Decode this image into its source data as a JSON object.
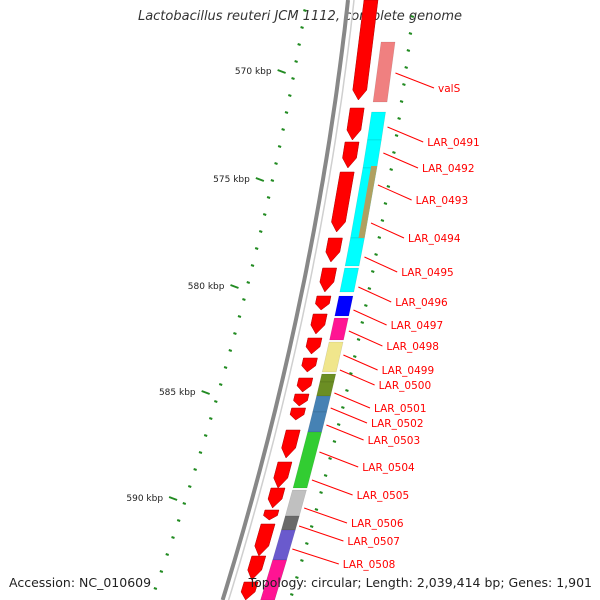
{
  "title": "Lactobacillus reuteri JCM 1112, complete genome",
  "accession": "Accession: NC_010609",
  "summary": "Topology: circular; Length: 2,039,414 bp; Genes: 1,901",
  "scale": {
    "tick_labels": [
      "570 kbp",
      "575 kbp",
      "580 kbp",
      "585 kbp",
      "590 kbp"
    ]
  },
  "genes": [
    {
      "label": "valS",
      "color": "#f08080"
    },
    {
      "label": "LAR_0491",
      "color": "#00ffff"
    },
    {
      "label": "LAR_0492",
      "color": "#00ffff"
    },
    {
      "label": "LAR_0493",
      "color": "#00ffff"
    },
    {
      "label": "LAR_0494",
      "color": "#00ffff"
    },
    {
      "label": "LAR_0495",
      "color": "#00ffff"
    },
    {
      "label": "LAR_0496",
      "color": "#0000ff"
    },
    {
      "label": "LAR_0497",
      "color": "#ff1493"
    },
    {
      "label": "LAR_0498",
      "color": "#f0e68c"
    },
    {
      "label": "LAR_0499",
      "color": "#6b8e23"
    },
    {
      "label": "LAR_0500",
      "color": "#6b8e23"
    },
    {
      "label": "LAR_0501",
      "color": "#4682b4"
    },
    {
      "label": "LAR_0502",
      "color": "#4682b4"
    },
    {
      "label": "LAR_0503",
      "color": "#32cd32"
    },
    {
      "label": "LAR_0504",
      "color": "#c0c0c0"
    },
    {
      "label": "LAR_0505",
      "color": "#696969"
    },
    {
      "label": "LAR_0506",
      "color": "#6a5acd"
    },
    {
      "label": "LAR_0507",
      "color": "#c0c0c0"
    },
    {
      "label": "LAR_0508",
      "color": "#ff1493"
    }
  ],
  "colors": {
    "cds": "#ff0000",
    "backbone": "#a0a0a0",
    "tick": "#228b22",
    "label": "#ff0000",
    "overlap": "#b0a060"
  }
}
